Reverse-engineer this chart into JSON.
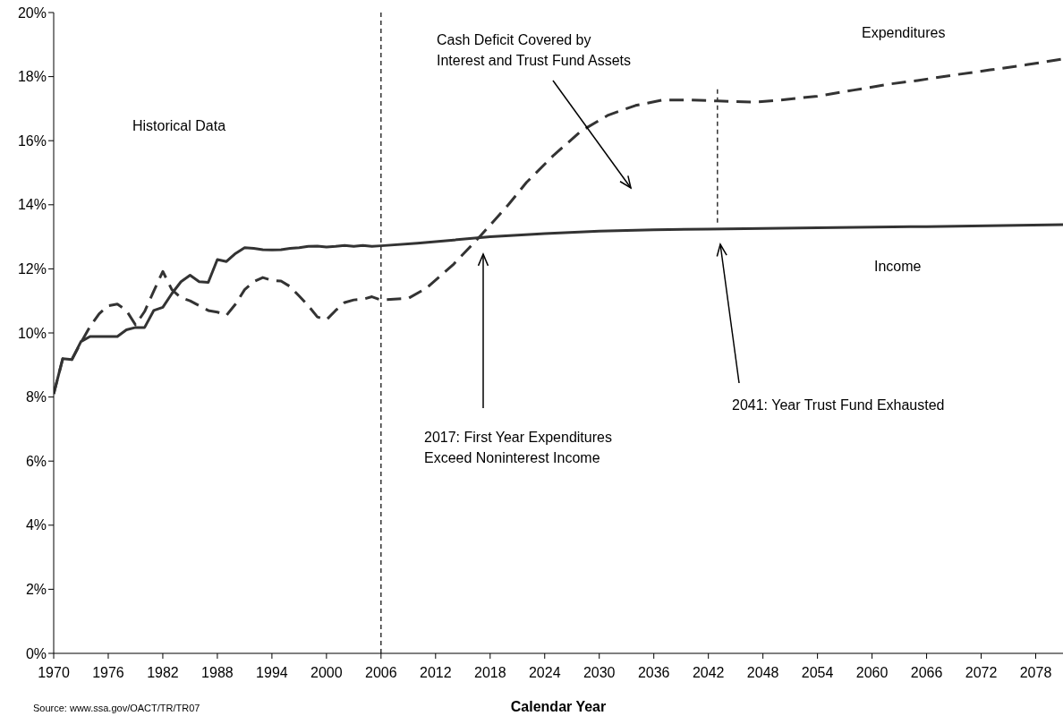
{
  "chart_data": {
    "type": "line",
    "xlabel": "Calendar Year",
    "xlim": [
      1970,
      2081
    ],
    "xticks": [
      1970,
      1976,
      1982,
      1988,
      1994,
      2000,
      2006,
      2012,
      2018,
      2024,
      2030,
      2036,
      2042,
      2048,
      2054,
      2060,
      2066,
      2072,
      2078
    ],
    "ylim": [
      0,
      20
    ],
    "yticks": [
      {
        "value": 0,
        "label": "0%"
      },
      {
        "value": 2,
        "label": "2%"
      },
      {
        "value": 4,
        "label": "4%"
      },
      {
        "value": 6,
        "label": "6%"
      },
      {
        "value": 8,
        "label": "8%"
      },
      {
        "value": 10,
        "label": "10%"
      },
      {
        "value": 12,
        "label": "12%"
      },
      {
        "value": 14,
        "label": "14%"
      },
      {
        "value": 16,
        "label": "16%"
      },
      {
        "value": 18,
        "label": "18%"
      },
      {
        "value": 20,
        "label": "20%"
      }
    ],
    "marker": "none",
    "series": [
      {
        "name": "Income",
        "color": "#333333",
        "line_style": "solid",
        "x": [
          1970,
          1971,
          1972,
          1973,
          1974,
          1975,
          1976,
          1977,
          1978,
          1979,
          1980,
          1981,
          1982,
          1983,
          1984,
          1985,
          1986,
          1987,
          1988,
          1989,
          1990,
          1991,
          1992,
          1993,
          1994,
          1995,
          1996,
          1997,
          1998,
          1999,
          2000,
          2001,
          2002,
          2003,
          2004,
          2005,
          2006,
          2010,
          2014,
          2018,
          2024,
          2030,
          2036,
          2042,
          2054,
          2066,
          2081
        ],
        "values": [
          8.1,
          9.2,
          9.17,
          9.73,
          9.89,
          9.89,
          9.89,
          9.89,
          10.1,
          10.17,
          10.17,
          10.7,
          10.8,
          11.23,
          11.6,
          11.8,
          11.6,
          11.58,
          12.29,
          12.23,
          12.48,
          12.66,
          12.64,
          12.6,
          12.59,
          12.6,
          12.64,
          12.66,
          12.7,
          12.71,
          12.68,
          12.7,
          12.73,
          12.7,
          12.73,
          12.7,
          12.72,
          12.8,
          12.9,
          13.0,
          13.1,
          13.18,
          13.22,
          13.24,
          13.28,
          13.32,
          13.38
        ]
      },
      {
        "name": "Expenditures",
        "color": "#333333",
        "line_style": "dashed",
        "x": [
          1970,
          1971,
          1972,
          1973,
          1974,
          1975,
          1976,
          1977,
          1978,
          1979,
          1980,
          1981,
          1982,
          1983,
          1984,
          1985,
          1986,
          1987,
          1988,
          1989,
          1990,
          1991,
          1992,
          1993,
          1994,
          1995,
          1996,
          1997,
          1998,
          1999,
          2000,
          2001,
          2002,
          2003,
          2004,
          2005,
          2006,
          2009,
          2011,
          2014,
          2017,
          2020,
          2022,
          2025,
          2028,
          2031,
          2034,
          2037,
          2040,
          2043,
          2047,
          2050,
          2054,
          2058,
          2062,
          2065,
          2069,
          2073,
          2077,
          2081
        ],
        "values": [
          8.1,
          9.2,
          9.17,
          9.7,
          10.2,
          10.6,
          10.85,
          10.9,
          10.7,
          10.25,
          10.67,
          11.3,
          11.92,
          11.35,
          11.1,
          11.0,
          10.85,
          10.7,
          10.65,
          10.55,
          10.9,
          11.35,
          11.6,
          11.73,
          11.64,
          11.62,
          11.45,
          11.15,
          10.85,
          10.5,
          10.41,
          10.7,
          10.95,
          11.03,
          11.05,
          11.13,
          11.03,
          11.08,
          11.4,
          12.15,
          13.05,
          14.0,
          14.7,
          15.55,
          16.3,
          16.8,
          17.1,
          17.27,
          17.27,
          17.24,
          17.2,
          17.27,
          17.39,
          17.58,
          17.77,
          17.88,
          18.05,
          18.21,
          18.37,
          18.55
        ]
      }
    ],
    "ref_lines": [
      {
        "axis": "x",
        "value": 2006,
        "color": "#000000",
        "line_style": "dashed"
      },
      {
        "axis": "x",
        "value": 2043,
        "color": "#000000",
        "line_style": "dashed"
      }
    ],
    "annotations": [
      "Historical Data",
      "Cash Deficit Covered by\nInterest and Trust Fund Assets",
      "2017: First Year Expenditures\nExceed Noninterest Income",
      "2041: Year Trust Fund Exhausted",
      "Source: www.ssa.gov/OACT/TR/TR07"
    ]
  }
}
